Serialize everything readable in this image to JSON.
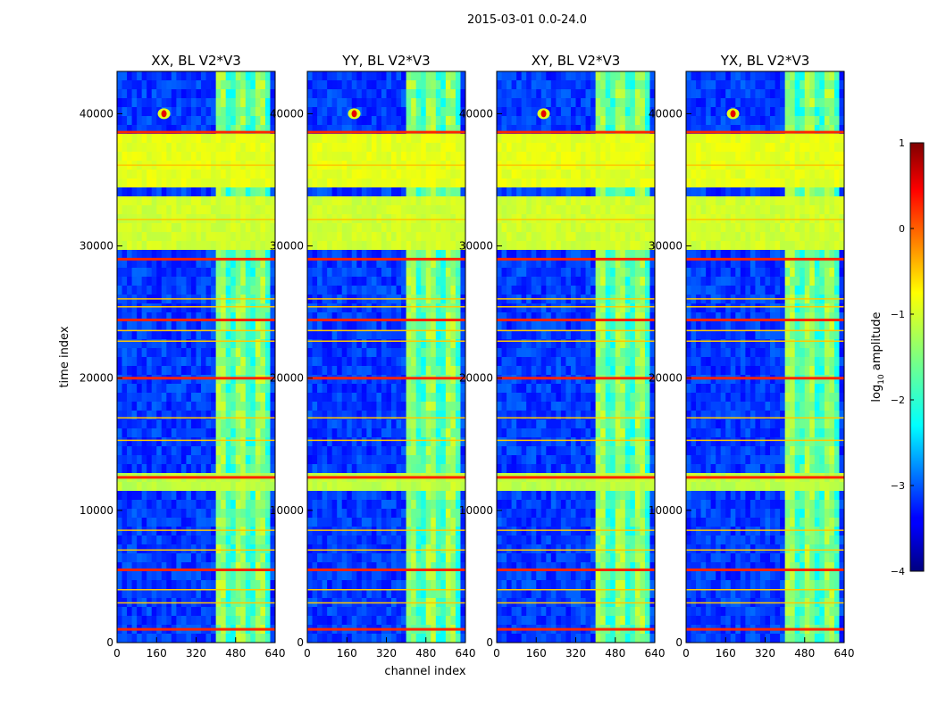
{
  "figure": {
    "suptitle": "2015-03-01 0.0-24.0",
    "xlabel": "channel index",
    "ylabel": "time index"
  },
  "chart_data": {
    "type": "heatmap",
    "x_range": [
      0,
      640
    ],
    "y_range": [
      0,
      43200
    ],
    "x_ticks": [
      0,
      160,
      320,
      480,
      640
    ],
    "y_ticks": [
      0,
      10000,
      20000,
      30000,
      40000
    ],
    "panels": [
      {
        "title": "XX, BL V2*V3"
      },
      {
        "title": "YY, BL V2*V3"
      },
      {
        "title": "XY, BL V2*V3"
      },
      {
        "title": "YX, BL V2*V3"
      }
    ],
    "colorbar": {
      "label_prefix": "log",
      "label_sub": "10",
      "label_suffix": " amplitude",
      "range": [
        -4,
        1
      ],
      "ticks": [
        -4,
        -3,
        -2,
        -1,
        0,
        1
      ],
      "tick_labels": [
        "−4",
        "−3",
        "−2",
        "−1",
        "0",
        "1"
      ],
      "colormap": [
        "#00007f",
        "#0000ff",
        "#007fff",
        "#00ffff",
        "#7fff7f",
        "#ffff00",
        "#ff7f00",
        "#ff0000",
        "#7f0000"
      ]
    },
    "features": {
      "background_level": -3.1,
      "signal_channel_range": [
        400,
        620
      ],
      "signal_level": -1.6,
      "flag_bands": [
        {
          "time": [
            34500,
            38500
          ],
          "level": -1.0
        },
        {
          "time": [
            29800,
            34000
          ],
          "level": -1.1
        },
        {
          "time": [
            11200,
            12800
          ],
          "level": -1.2
        }
      ],
      "rfi_lines_time": [
        38600,
        36100,
        32000,
        29000,
        26000,
        25400,
        24400,
        23600,
        22800,
        20000,
        17000,
        15300,
        12500,
        8500,
        7000,
        5500,
        4000,
        3000,
        1000
      ],
      "source_blob": {
        "channel": 190,
        "time": 40000
      }
    }
  }
}
